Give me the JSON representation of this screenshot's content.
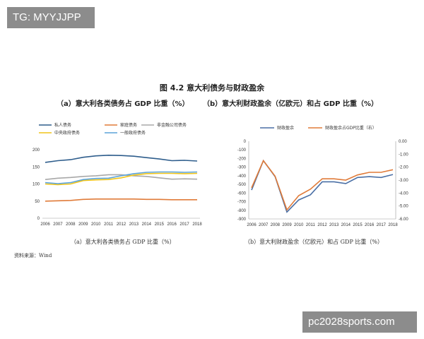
{
  "watermark_top": "TG: MYYJJPP",
  "watermark_bottom": "pc2028sports.com",
  "figure_title": "图 4.2  意大利债务与财政盈余",
  "subtitle_a": "（a）意大利各类债务占 GDP 比重（%）",
  "subtitle_b": "（b）意大利财政盈余（亿欧元）和占 GDP 比重（%）",
  "caption_a": "（a）意大利各类债务占 GDP 比重（%）",
  "caption_b": "（b）意大利财政盈余（亿欧元）和占 GDP 比重（%）",
  "source": "资料来源：Wind",
  "chart_data": [
    {
      "type": "line",
      "x": [
        "2006",
        "2007",
        "2008",
        "2009",
        "2010",
        "2011",
        "2012",
        "2013",
        "2014",
        "2015",
        "2016",
        "2017",
        "2018"
      ],
      "ylim": [
        0,
        200
      ],
      "yticks": [
        0,
        50,
        100,
        150,
        200
      ],
      "legend_position": "top",
      "series": [
        {
          "name": "私人债务",
          "color": "#2e5d8c",
          "values": [
            163,
            168,
            171,
            178,
            182,
            184,
            183,
            181,
            177,
            173,
            168,
            169,
            167
          ]
        },
        {
          "name": "家庭债务",
          "color": "#e07b39",
          "values": [
            50,
            51,
            52,
            55,
            56,
            56,
            56,
            56,
            55,
            55,
            54,
            54,
            54
          ]
        },
        {
          "name": "非金融公司债务",
          "color": "#a8a8a8",
          "values": [
            113,
            117,
            119,
            122,
            124,
            127,
            127,
            124,
            122,
            118,
            114,
            115,
            114
          ]
        },
        {
          "name": "中央政府债务",
          "color": "#f0c419",
          "values": [
            100,
            98,
            100,
            110,
            112,
            113,
            118,
            126,
            130,
            131,
            131,
            130,
            131
          ]
        },
        {
          "name": "一般政府债务",
          "color": "#5ba3d8",
          "values": [
            104,
            101,
            104,
            113,
            116,
            117,
            124,
            130,
            134,
            135,
            135,
            134,
            135
          ]
        }
      ]
    },
    {
      "type": "line",
      "x": [
        "2006",
        "2007",
        "2008",
        "2009",
        "2010",
        "2011",
        "2012",
        "2013",
        "2014",
        "2015",
        "2016",
        "2017",
        "2018"
      ],
      "ylim": [
        -900,
        0
      ],
      "yticks": [
        0,
        -100,
        -200,
        -300,
        -400,
        -500,
        -600,
        -700,
        -800,
        -900
      ],
      "y2lim": [
        -6.0,
        0.0
      ],
      "y2ticks": [
        "0.00",
        "-1.00",
        "-2.00",
        "-3.00",
        "-4.00",
        "-5.00",
        "-6.00"
      ],
      "legend_position": "top",
      "series": [
        {
          "name": "财政盈余",
          "color": "#4a6fa5",
          "axis": "left",
          "values": [
            -565,
            -225,
            -410,
            -820,
            -680,
            -620,
            -470,
            -470,
            -490,
            -420,
            -410,
            -420,
            -385
          ]
        },
        {
          "name": "财政盈余占GDP比重（右）",
          "color": "#e07b39",
          "axis": "right",
          "values": [
            -3.6,
            -1.5,
            -2.7,
            -5.3,
            -4.2,
            -3.7,
            -2.9,
            -2.9,
            -3.0,
            -2.6,
            -2.4,
            -2.4,
            -2.2
          ]
        }
      ]
    }
  ]
}
